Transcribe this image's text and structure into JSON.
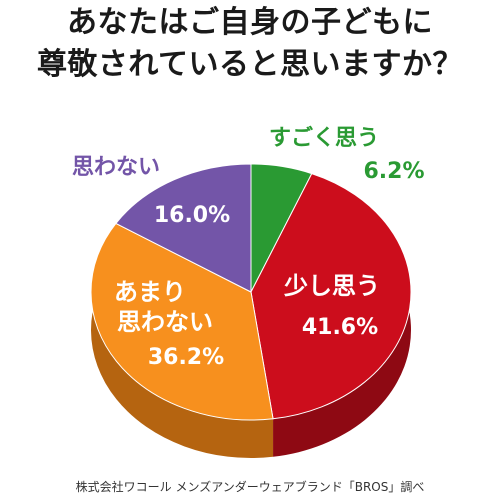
{
  "title_lines": [
    "あなたはご自身の子どもに",
    "尊敬されていると思いますか？"
  ],
  "chart_data": {
    "type": "pie",
    "title": "あなたはご自身の子どもに尊敬されていると思いますか？",
    "categories": [
      "すごく思う",
      "少し思う",
      "あまり思わない",
      "思わない"
    ],
    "values": [
      6.2,
      41.6,
      36.2,
      16.0
    ],
    "value_labels": [
      "6.2%",
      "41.6%",
      "36.2%",
      "16.0%"
    ],
    "colors": [
      "#2a9a33",
      "#cc0d1c",
      "#f7901e",
      "#7355a8"
    ],
    "depth_colors": [
      "#1c6b23",
      "#8e0913",
      "#b56410",
      "#4e3a78"
    ],
    "label_colors": [
      "#2a9a33",
      "#ffffff",
      "#ffffff",
      "#ffffff"
    ],
    "category_label_colors": [
      "#2a9a33",
      "#ffffff",
      "#ffffff",
      "#7355a8"
    ]
  },
  "source": "株式会社ワコール メンズアンダーウェアブランド「BROS」調べ"
}
